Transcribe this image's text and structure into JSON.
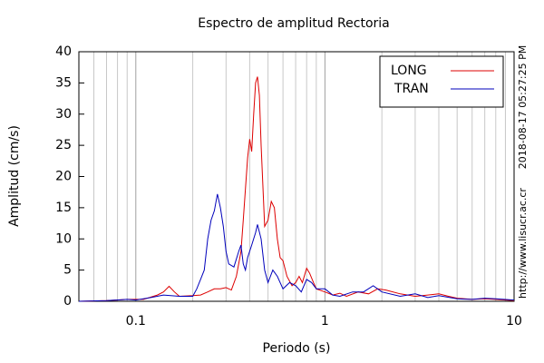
{
  "chart_data": {
    "type": "line",
    "title": "Espectro de amplitud Rectoria",
    "xlabel": "Periodo (s)",
    "ylabel": "Amplitud (cm/s)",
    "side_texts": [
      "2018-08-17 05:27:25 PM",
      "http://www.lisucr.ac.cr"
    ],
    "xscale": "log",
    "xlim": [
      0.05,
      10
    ],
    "xticks": [
      0.1,
      1,
      10
    ],
    "xminor": [
      0.06,
      0.07,
      0.08,
      0.09,
      0.2,
      0.3,
      0.4,
      0.5,
      0.6,
      0.7,
      0.8,
      0.9,
      2,
      3,
      4,
      5,
      6,
      7,
      8,
      9
    ],
    "ylim": [
      0,
      40
    ],
    "yticks": [
      0,
      5,
      10,
      15,
      20,
      25,
      30,
      35,
      40
    ],
    "grid": "x",
    "legend": "upper right",
    "series": [
      {
        "name": "LONG",
        "color": "#dd0000",
        "x": [
          0.05,
          0.07,
          0.09,
          0.11,
          0.13,
          0.14,
          0.15,
          0.16,
          0.17,
          0.2,
          0.22,
          0.24,
          0.26,
          0.28,
          0.3,
          0.32,
          0.34,
          0.36,
          0.37,
          0.38,
          0.39,
          0.4,
          0.41,
          0.42,
          0.43,
          0.44,
          0.45,
          0.46,
          0.48,
          0.5,
          0.52,
          0.54,
          0.56,
          0.58,
          0.6,
          0.63,
          0.67,
          0.7,
          0.73,
          0.76,
          0.8,
          0.83,
          0.87,
          0.9,
          1.0,
          1.1,
          1.2,
          1.3,
          1.5,
          1.7,
          1.9,
          2.1,
          2.5,
          3,
          3.5,
          4,
          4.5,
          5,
          6,
          7,
          8,
          10
        ],
        "values": [
          0,
          0.1,
          0.3,
          0.3,
          1.0,
          1.5,
          2.4,
          1.5,
          0.8,
          0.9,
          1.0,
          1.5,
          2.0,
          2.0,
          2.2,
          1.8,
          4.0,
          8,
          13,
          18,
          23,
          26,
          24,
          30,
          35,
          36,
          33,
          25,
          12,
          13,
          16,
          15,
          10,
          7,
          6.5,
          4,
          2.5,
          3,
          4,
          3,
          5.3,
          4.5,
          3,
          2,
          1.5,
          1.0,
          1.3,
          0.8,
          1.5,
          1.2,
          2.0,
          1.8,
          1.2,
          0.8,
          1.0,
          1.2,
          0.8,
          0.5,
          0.3,
          0.4,
          0.3,
          0.1
        ]
      },
      {
        "name": "TRAN",
        "color": "#0000bb",
        "x": [
          0.05,
          0.07,
          0.09,
          0.1,
          0.12,
          0.14,
          0.17,
          0.2,
          0.21,
          0.22,
          0.23,
          0.24,
          0.25,
          0.26,
          0.27,
          0.28,
          0.29,
          0.3,
          0.31,
          0.33,
          0.35,
          0.36,
          0.37,
          0.38,
          0.39,
          0.41,
          0.43,
          0.44,
          0.46,
          0.48,
          0.5,
          0.53,
          0.56,
          0.6,
          0.65,
          0.7,
          0.75,
          0.8,
          0.85,
          0.9,
          1.0,
          1.1,
          1.2,
          1.4,
          1.6,
          1.8,
          2,
          2.5,
          3,
          3.5,
          4,
          5,
          6,
          7,
          8,
          10
        ],
        "values": [
          0,
          0.1,
          0.3,
          0.2,
          0.6,
          1.0,
          0.8,
          0.8,
          2,
          3.5,
          5,
          10,
          13,
          14.5,
          17.2,
          15,
          12,
          8,
          6,
          5.5,
          8,
          9,
          6,
          5,
          7,
          9,
          11,
          12.3,
          10,
          5,
          3,
          5,
          4,
          2,
          3,
          2.5,
          1.5,
          3.5,
          3,
          2,
          2,
          1.0,
          0.8,
          1.5,
          1.5,
          2.5,
          1.5,
          0.8,
          1.2,
          0.6,
          0.9,
          0.4,
          0.3,
          0.5,
          0.4,
          0.2
        ]
      }
    ]
  }
}
